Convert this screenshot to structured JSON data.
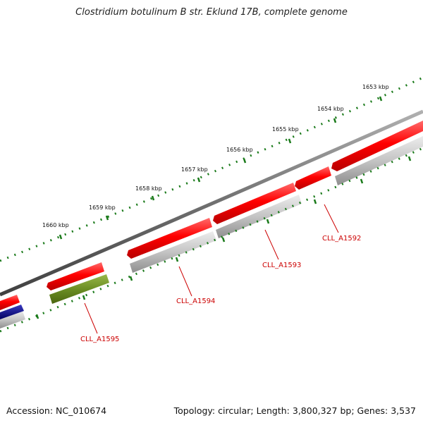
{
  "title": "Clostridium botulinum B str. Eklund 17B, complete genome",
  "footer": {
    "accession": "Accession: NC_010674",
    "summary": "Topology: circular; Length: 3,800,327 bp; Genes: 3,537"
  },
  "ruler": {
    "labels": [
      "1653 kbp",
      "1654 kbp",
      "1655 kbp",
      "1656 kbp",
      "1657 kbp",
      "1658 kbp",
      "1659 kbp",
      "1660 kbp"
    ],
    "color": "#1a7a1a"
  },
  "gene_labels": [
    "CLL_A1592",
    "CLL_A1593",
    "CLL_A1594",
    "CLL_A1595"
  ],
  "colors": {
    "backbone": "#707070",
    "forward_gene": "#ff0000",
    "reverse_gene": "#b8b8b8",
    "other_gene": "#6b8e23",
    "blue_gene": "#000080",
    "label": "#cc0000"
  }
}
